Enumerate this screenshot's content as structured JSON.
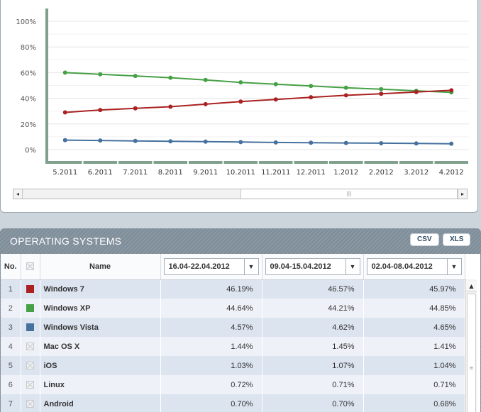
{
  "chart_data": {
    "type": "line",
    "categories": [
      "5.2011",
      "6.2011",
      "7.2011",
      "8.2011",
      "9.2011",
      "10.2011",
      "11.2011",
      "12.2011",
      "1.2012",
      "2.2012",
      "3.2012",
      "4.2012"
    ],
    "y_ticks": [
      "0%",
      "20%",
      "40%",
      "60%",
      "80%",
      "100%"
    ],
    "ylim": [
      0,
      100
    ],
    "grid": true,
    "series": [
      {
        "name": "Windows XP",
        "color": "#46a046",
        "values": [
          60.0,
          58.7,
          57.4,
          56.0,
          54.3,
          52.4,
          51.0,
          49.6,
          48.2,
          47.1,
          45.8,
          44.6
        ]
      },
      {
        "name": "Windows 7",
        "color": "#aa2222",
        "values": [
          29.0,
          30.9,
          32.2,
          33.4,
          35.4,
          37.4,
          39.1,
          40.8,
          42.3,
          43.5,
          44.9,
          46.2
        ]
      },
      {
        "name": "Windows Vista",
        "color": "#46719e",
        "values": [
          7.4,
          7.1,
          6.8,
          6.5,
          6.2,
          5.9,
          5.6,
          5.4,
          5.2,
          5.0,
          4.8,
          4.6
        ]
      }
    ]
  },
  "chart_scroll": {
    "left_arrow": "◂",
    "right_arrow": "▸",
    "thumb_grip": "|||"
  },
  "panel": {
    "title": "OPERATING SYSTEMS",
    "csv_label": "CSV",
    "xls_label": "XLS"
  },
  "table": {
    "headers": {
      "no": "No.",
      "name": "Name"
    },
    "periods": [
      "16.04-22.04.2012",
      "09.04-15.04.2012",
      "02.04-08.04.2012"
    ],
    "caret": "▼",
    "rows": [
      {
        "no": "1",
        "name": "Windows 7",
        "color": "#aa2222",
        "v1": "46.19%",
        "v2": "46.57%",
        "v3": "45.97%"
      },
      {
        "no": "2",
        "name": "Windows XP",
        "color": "#46a046",
        "v1": "44.64%",
        "v2": "44.21%",
        "v3": "44.85%"
      },
      {
        "no": "3",
        "name": "Windows Vista",
        "color": "#46719e",
        "v1": "4.57%",
        "v2": "4.62%",
        "v3": "4.65%"
      },
      {
        "no": "4",
        "name": "Mac OS X",
        "color": "",
        "v1": "1.44%",
        "v2": "1.45%",
        "v3": "1.41%"
      },
      {
        "no": "5",
        "name": "iOS",
        "color": "",
        "v1": "1.03%",
        "v2": "1.07%",
        "v3": "1.04%"
      },
      {
        "no": "6",
        "name": "Linux",
        "color": "",
        "v1": "0.72%",
        "v2": "0.71%",
        "v3": "0.71%"
      },
      {
        "no": "7",
        "name": "Android",
        "color": "",
        "v1": "0.70%",
        "v2": "0.70%",
        "v3": "0.68%"
      }
    ],
    "scroll": {
      "up_arrow": "▲",
      "thumb_grip": "≡"
    }
  }
}
